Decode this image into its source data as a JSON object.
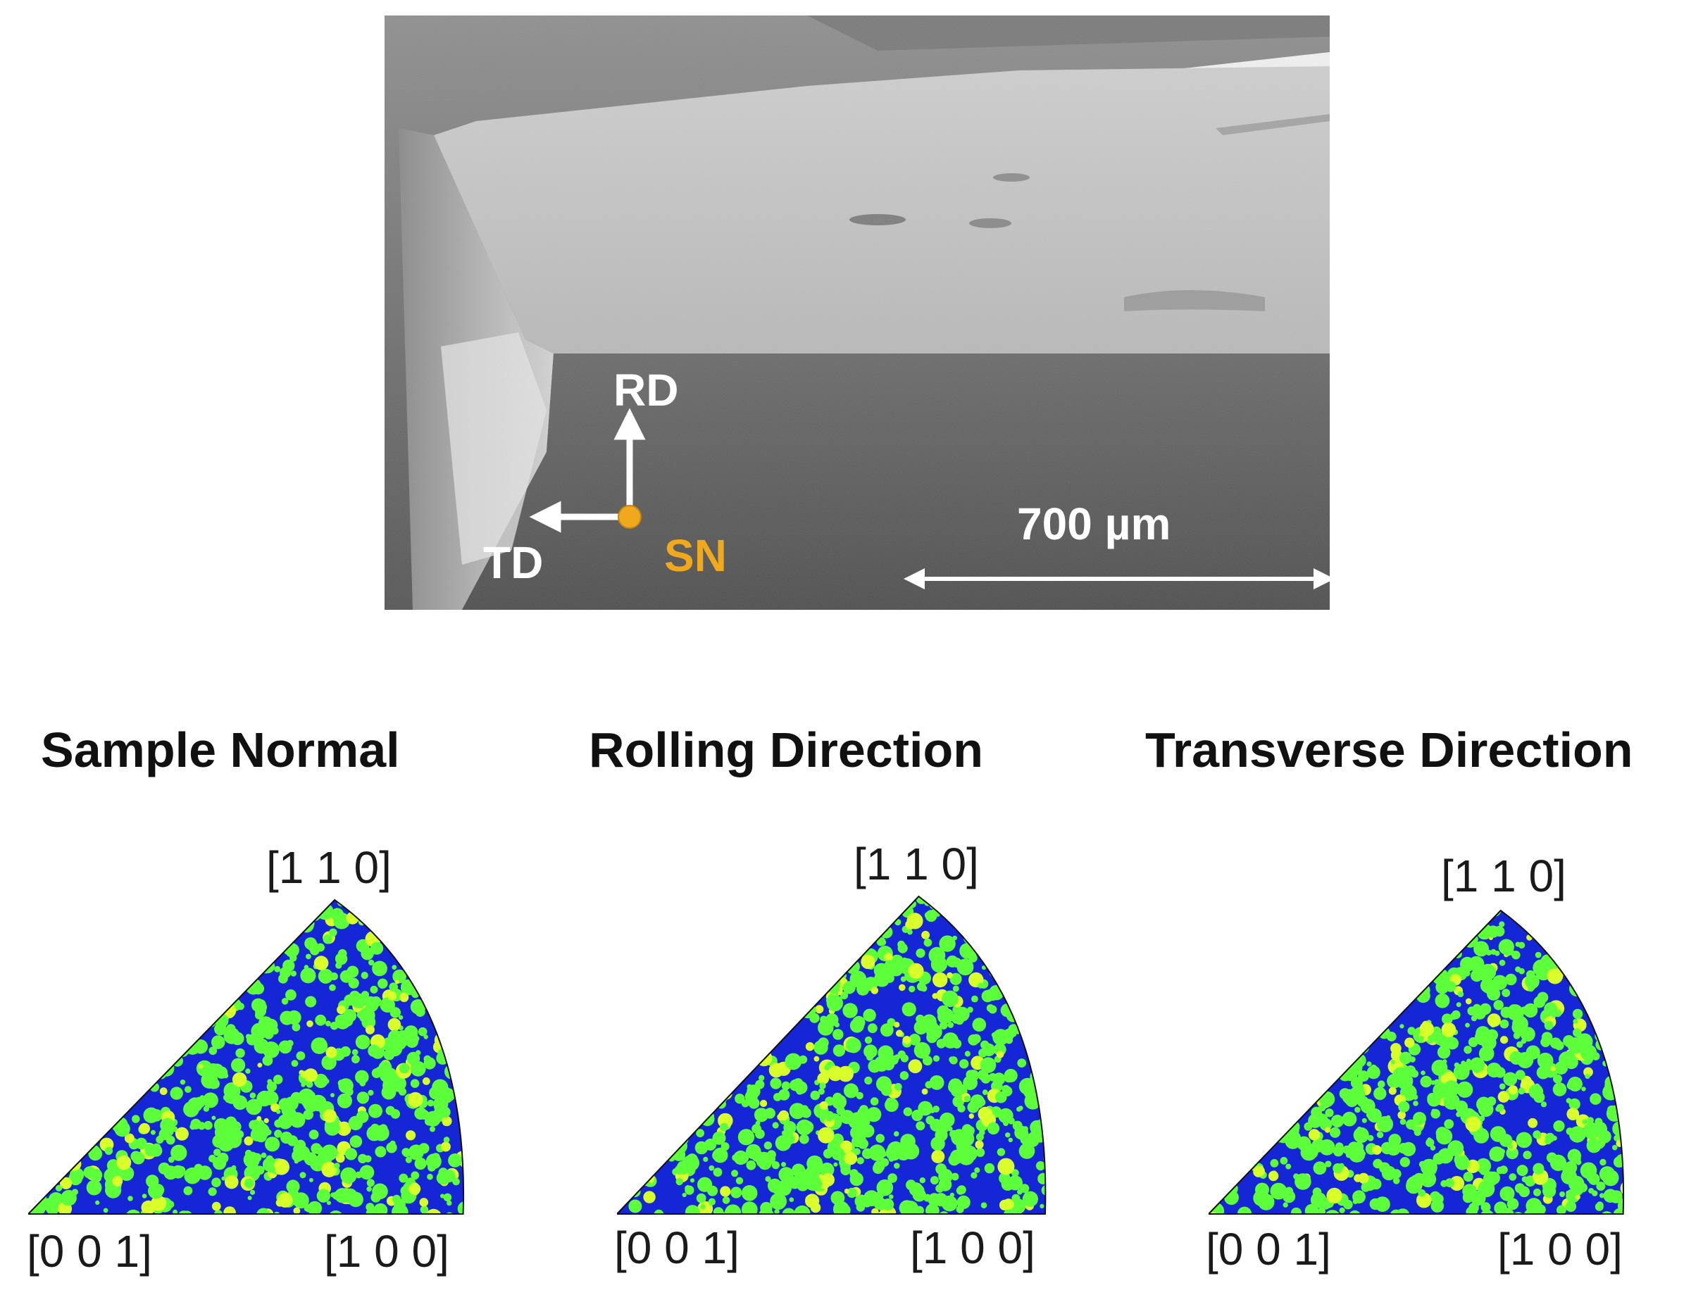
{
  "sem_image": {
    "labels": {
      "rd": "RD",
      "td": "TD",
      "sn": "SN"
    },
    "scale_bar": "700 µm",
    "colors": {
      "axis_arrows": "#ffffff",
      "sample_normal": "#f0a81c"
    }
  },
  "ipf_panels": [
    {
      "title": "Sample Normal",
      "corner_110": "[1 1 0]",
      "corner_001": "[0 0 1]",
      "corner_100": "[1 0 0]"
    },
    {
      "title": "Rolling Direction",
      "corner_110": "[1 1 0]",
      "corner_001": "[0 0 1]",
      "corner_100": "[1 0 0]"
    },
    {
      "title": "Transverse Direction",
      "corner_110": "[1 1 0]",
      "corner_001": "[0 0 1]",
      "corner_100": "[1 0 0]"
    }
  ],
  "ipf_colors": {
    "base": "#1426d6",
    "high": "#5cff3a",
    "peak": "#d8ff2a"
  }
}
